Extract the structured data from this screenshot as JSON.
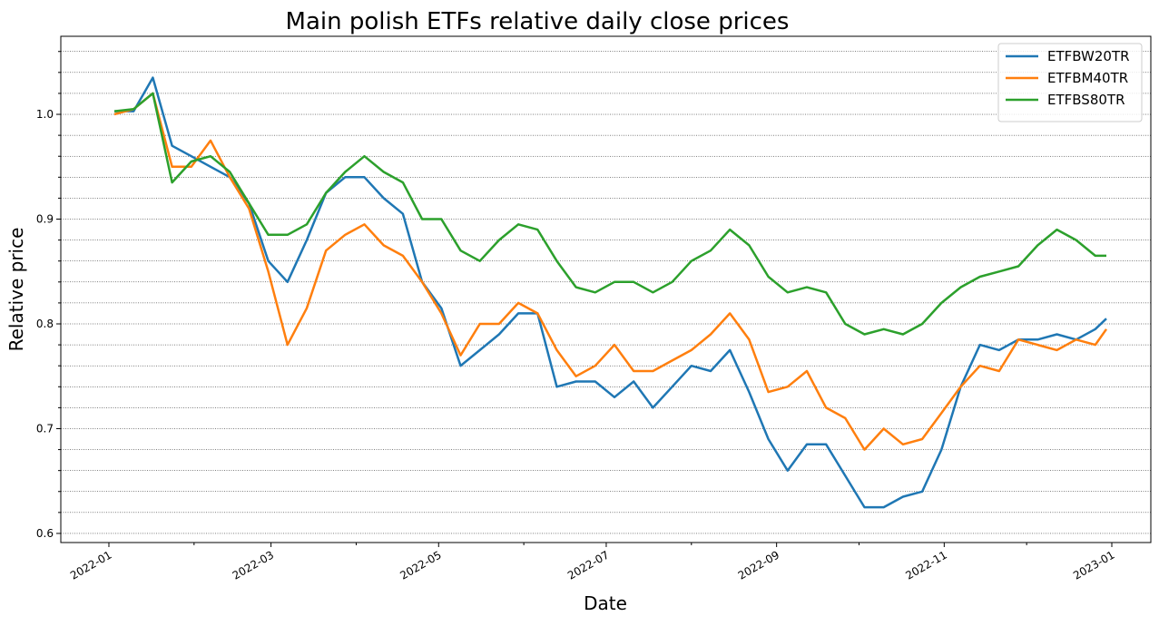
{
  "chart_data": {
    "type": "line",
    "title": "Main polish ETFs relative daily close prices",
    "x_label": "Date",
    "y_label": "Relative price",
    "x": [
      2,
      9,
      16,
      23,
      30,
      37,
      44,
      51,
      58,
      65,
      72,
      79,
      86,
      93,
      100,
      107,
      114,
      121,
      128,
      135,
      142,
      149,
      156,
      163,
      170,
      177,
      184,
      191,
      198,
      205,
      212,
      219,
      226,
      233,
      240,
      247,
      254,
      261,
      268,
      275,
      282,
      289,
      296,
      303,
      310,
      317,
      324,
      331,
      338,
      345,
      352,
      359,
      363
    ],
    "series": [
      {
        "name": "ETFBW20TR",
        "color": "#1f77b4",
        "values": [
          1.003,
          1.003,
          1.035,
          0.97,
          0.96,
          0.95,
          0.94,
          0.915,
          0.86,
          0.84,
          0.88,
          0.925,
          0.94,
          0.94,
          0.92,
          0.905,
          0.84,
          0.815,
          0.76,
          0.775,
          0.79,
          0.81,
          0.81,
          0.74,
          0.745,
          0.745,
          0.73,
          0.745,
          0.72,
          0.74,
          0.76,
          0.755,
          0.775,
          0.735,
          0.69,
          0.66,
          0.685,
          0.685,
          0.655,
          0.625,
          0.625,
          0.635,
          0.64,
          0.68,
          0.74,
          0.78,
          0.775,
          0.785,
          0.785,
          0.79,
          0.785,
          0.795,
          0.805
        ]
      },
      {
        "name": "ETFBM40TR",
        "color": "#ff7f0e",
        "values": [
          1.0,
          1.005,
          1.02,
          0.95,
          0.95,
          0.975,
          0.94,
          0.91,
          0.85,
          0.78,
          0.815,
          0.87,
          0.885,
          0.895,
          0.875,
          0.865,
          0.84,
          0.81,
          0.77,
          0.8,
          0.8,
          0.82,
          0.81,
          0.775,
          0.75,
          0.76,
          0.78,
          0.755,
          0.755,
          0.765,
          0.775,
          0.79,
          0.81,
          0.785,
          0.735,
          0.74,
          0.755,
          0.72,
          0.71,
          0.68,
          0.7,
          0.685,
          0.69,
          0.715,
          0.74,
          0.76,
          0.755,
          0.785,
          0.78,
          0.775,
          0.785,
          0.78,
          0.795
        ]
      },
      {
        "name": "ETFBS80TR",
        "color": "#2ca02c",
        "values": [
          1.003,
          1.005,
          1.02,
          0.935,
          0.955,
          0.96,
          0.945,
          0.915,
          0.885,
          0.885,
          0.895,
          0.925,
          0.945,
          0.96,
          0.945,
          0.935,
          0.9,
          0.9,
          0.87,
          0.86,
          0.88,
          0.895,
          0.89,
          0.86,
          0.835,
          0.83,
          0.84,
          0.84,
          0.83,
          0.84,
          0.86,
          0.87,
          0.89,
          0.875,
          0.845,
          0.83,
          0.835,
          0.83,
          0.8,
          0.79,
          0.795,
          0.79,
          0.8,
          0.82,
          0.835,
          0.845,
          0.85,
          0.855,
          0.875,
          0.89,
          0.88,
          0.865,
          0.865
        ]
      }
    ],
    "xlim": [
      -17.5,
      379.2
    ],
    "xticks": [
      {
        "value": 0,
        "label": "2022-01"
      },
      {
        "value": 59,
        "label": "2022-03"
      },
      {
        "value": 120,
        "label": "2022-05"
      },
      {
        "value": 181,
        "label": "2022-07"
      },
      {
        "value": 243,
        "label": "2022-09"
      },
      {
        "value": 304,
        "label": "2022-11"
      },
      {
        "value": 365,
        "label": "2023-01"
      }
    ],
    "xminorticks": [
      31,
      90,
      151,
      212,
      273,
      334
    ],
    "ylim": [
      0.5913,
      1.0745
    ],
    "yticks": [
      0.6,
      0.7,
      0.8,
      0.9,
      {
        "value": 1,
        "label": "1.0"
      }
    ],
    "yminorticks": [
      0.62,
      0.64,
      0.66,
      0.68,
      0.72,
      0.74,
      0.76,
      0.78,
      0.82,
      0.84,
      0.86,
      0.88,
      0.92,
      0.94,
      0.96,
      0.98,
      1.02,
      1.04,
      1.06
    ],
    "grid": true,
    "legend": "upper right"
  }
}
